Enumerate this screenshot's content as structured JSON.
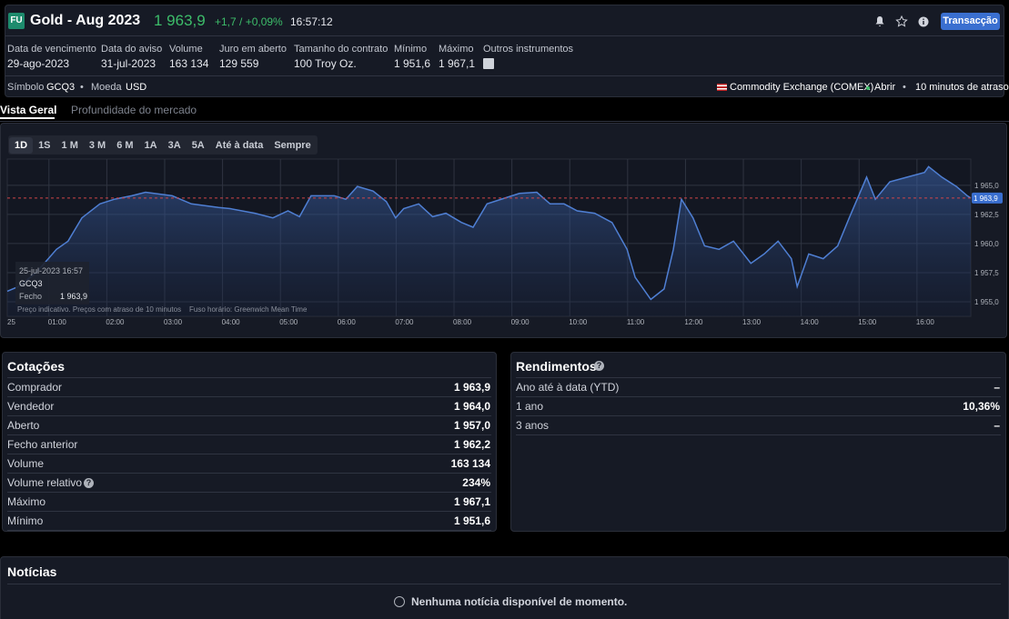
{
  "header": {
    "badge": "FU",
    "title": "Gold - Aug 2023",
    "price": "1 963,9",
    "change": "+1,7 / +0,09%",
    "time": "16:57:12",
    "button": "Transacção"
  },
  "details": [
    {
      "label": "Data de vencimento",
      "value": "29-ago-2023"
    },
    {
      "label": "Data do aviso",
      "value": "31-jul-2023"
    },
    {
      "label": "Volume",
      "value": "163 134"
    },
    {
      "label": "Juro em aberto",
      "value": "129 559"
    },
    {
      "label": "Tamanho do contrato",
      "value": "100 Troy Oz."
    },
    {
      "label": "Mínimo",
      "value": "1 951,6"
    },
    {
      "label": "Máximo",
      "value": "1 967,1"
    }
  ],
  "other_instruments": "Outros instrumentos",
  "meta": {
    "symbol_label": "Símbolo",
    "symbol": "GCQ3",
    "currency_label": "Moeda",
    "currency": "USD",
    "exchange": "Commodity Exchange (COMEX)",
    "status": "Abrir",
    "delay": "10 minutos de atraso"
  },
  "tabs": [
    "Vista Geral",
    "Profundidade do mercado"
  ],
  "ranges": [
    "1D",
    "1S",
    "1 M",
    "3 M",
    "6 M",
    "1A",
    "3A",
    "5A",
    "Até à data",
    "Sempre"
  ],
  "chart_data": {
    "type": "line",
    "color": "#4f7fd3",
    "grid": true,
    "x": [
      0.28,
      0.47,
      0.78,
      1.13,
      1.33,
      1.57,
      1.88,
      2.13,
      2.43,
      2.67,
      3.13,
      3.46,
      3.93,
      4.13,
      4.56,
      4.87,
      5.13,
      5.33,
      5.53,
      5.93,
      6.13,
      6.33,
      6.6,
      6.83,
      6.99,
      7.13,
      7.39,
      7.63,
      7.86,
      8.13,
      8.33,
      8.57,
      8.88,
      9.13,
      9.43,
      9.66,
      9.9,
      10.13,
      10.43,
      10.73,
      10.99,
      11.13,
      11.4,
      11.63,
      11.79,
      11.93,
      12.13,
      12.33,
      12.58,
      12.83,
      13.13,
      13.36,
      13.6,
      13.83,
      13.93,
      14.13,
      14.38,
      14.63,
      14.83,
      15.13,
      15.28,
      15.53,
      15.83,
      16.13,
      16.2,
      16.43,
      16.68,
      16.87,
      16.93
    ],
    "values": [
      1955.9,
      1956.3,
      1957.5,
      1959.5,
      1960.2,
      1962.2,
      1963.4,
      1963.8,
      1964.1,
      1964.4,
      1964.1,
      1963.4,
      1963.1,
      1963.0,
      1962.6,
      1962.2,
      1962.8,
      1962.3,
      1964.1,
      1964.1,
      1963.8,
      1964.9,
      1964.5,
      1963.6,
      1962.2,
      1963.0,
      1963.4,
      1962.3,
      1962.6,
      1961.8,
      1961.4,
      1963.4,
      1963.9,
      1964.3,
      1964.4,
      1963.4,
      1963.4,
      1962.8,
      1962.6,
      1961.8,
      1959.5,
      1957.1,
      1955.2,
      1956.1,
      1959.5,
      1963.8,
      1962.2,
      1959.8,
      1959.5,
      1960.2,
      1958.3,
      1959.1,
      1960.2,
      1958.7,
      1956.3,
      1959.1,
      1958.7,
      1959.8,
      1962.2,
      1965.7,
      1963.8,
      1965.3,
      1965.7,
      1966.1,
      1966.6,
      1965.7,
      1964.9,
      1964.1,
      1963.9
    ],
    "xlim": [
      0.28,
      16.93
    ],
    "xticks": [
      {
        "value": 0.28,
        "label": "25"
      },
      {
        "value": 1,
        "label": "01:00"
      },
      {
        "value": 2,
        "label": "02:00"
      },
      {
        "value": 3,
        "label": "03:00"
      },
      {
        "value": 4,
        "label": "04:00"
      },
      {
        "value": 5,
        "label": "05:00"
      },
      {
        "value": 6,
        "label": "06:00"
      },
      {
        "value": 7,
        "label": "07:00"
      },
      {
        "value": 8,
        "label": "08:00"
      },
      {
        "value": 9,
        "label": "09:00"
      },
      {
        "value": 10,
        "label": "10:00"
      },
      {
        "value": 11,
        "label": "11:00"
      },
      {
        "value": 12,
        "label": "12:00"
      },
      {
        "value": 13,
        "label": "13:00"
      },
      {
        "value": 14,
        "label": "14:00"
      },
      {
        "value": 15,
        "label": "15:00"
      },
      {
        "value": 16,
        "label": "16:00"
      }
    ],
    "ylim": [
      1953.75,
      1967.25
    ],
    "yticks": [
      {
        "value": 1955,
        "label": "1 955,0"
      },
      {
        "value": 1957.5,
        "label": "1 957,5"
      },
      {
        "value": 1960,
        "label": "1 960,0"
      },
      {
        "value": 1962.5,
        "label": "1 962,5"
      },
      {
        "value": 1965,
        "label": "1 965,0"
      }
    ],
    "reference_line": {
      "value": 1963.9,
      "label": "1 963,9"
    },
    "tooltip": {
      "date": "25-jul-2023 16:57",
      "symbol": "GCQ3",
      "label": "Fecho",
      "value": "1 963,9"
    },
    "footnote": [
      "Preço indicativo. Preços com atraso de 10 minutos",
      "Fuso horário: Greenwich Mean Time"
    ]
  },
  "quotes": {
    "title": "Cotações",
    "rows": [
      [
        "Comprador",
        "1 963,9"
      ],
      [
        "Vendedor",
        "1 964,0"
      ],
      [
        "Aberto",
        "1 957,0"
      ],
      [
        "Fecho anterior",
        "1 962,2"
      ],
      [
        "Volume",
        "163 134"
      ],
      [
        "Volume relativo",
        "234%"
      ],
      [
        "Máximo",
        "1 967,1"
      ],
      [
        "Mínimo",
        "1 951,6"
      ]
    ]
  },
  "returns": {
    "title": "Rendimentos",
    "rows": [
      [
        "Ano até à data (YTD)",
        "–"
      ],
      [
        "1 ano",
        "10,36%"
      ],
      [
        "3 anos",
        "–"
      ]
    ]
  },
  "news": {
    "title": "Notícias",
    "message": "Nenhuma notícia disponível de momento."
  }
}
